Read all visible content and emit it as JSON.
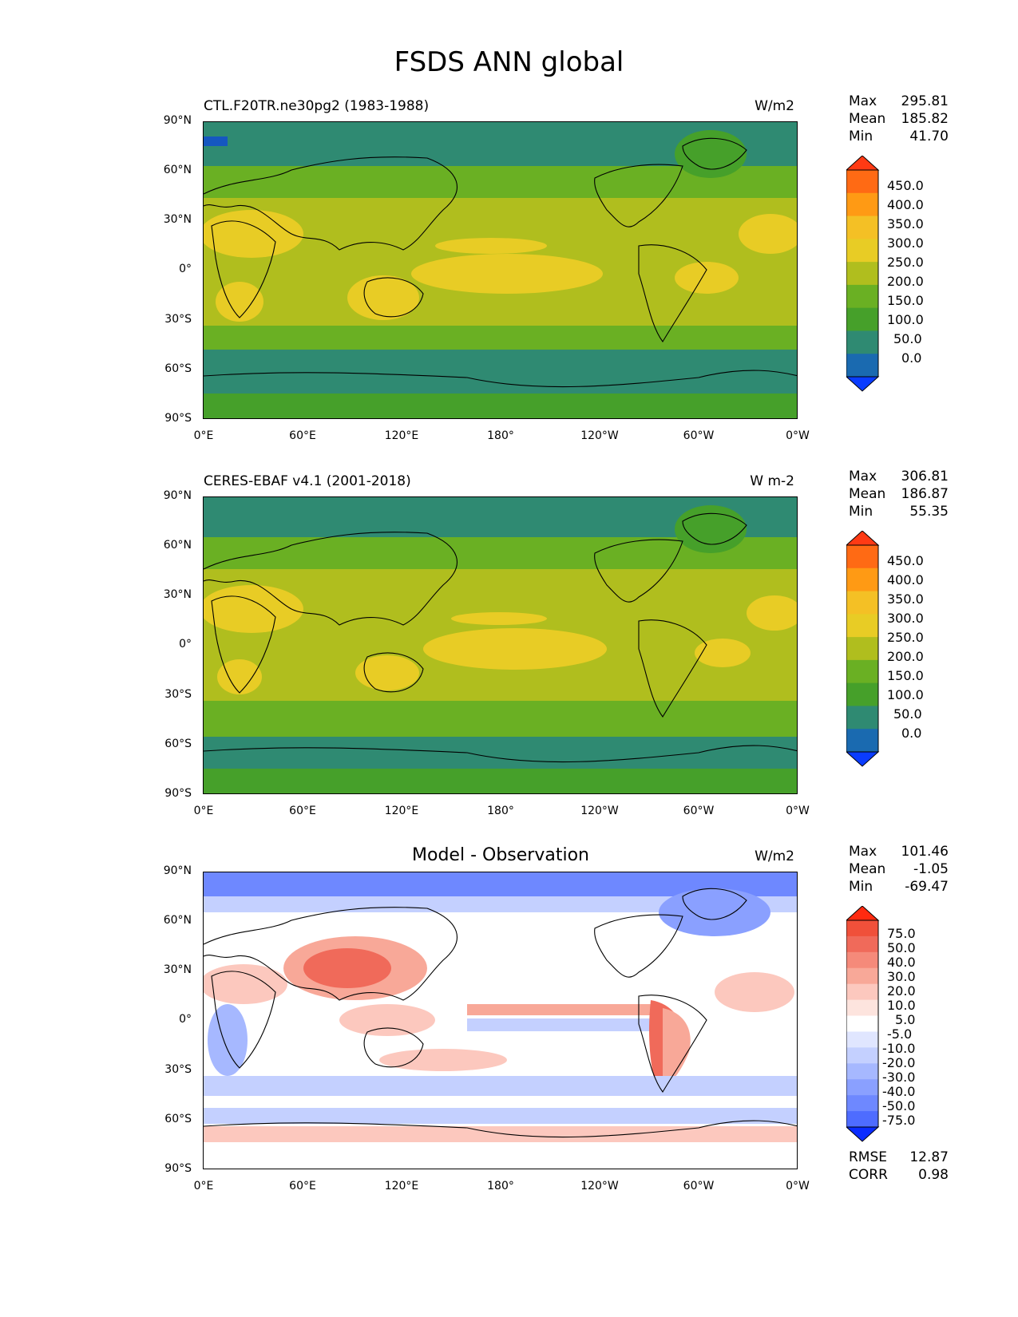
{
  "title": "FSDS ANN global",
  "colors": {
    "bg_green": "#46a02a",
    "dark_teal": "#2f8a72",
    "mid_green": "#6ab023",
    "olive": "#b0be1e",
    "yellow": "#e8cc25",
    "blue_region": "#1557c0",
    "diff_white": "#ffffff",
    "diff_blue_light": "#c9d6ff",
    "diff_blue_mid": "#8ea8ff",
    "diff_blue_dark": "#5a7cf0",
    "diff_red_light": "#ffcfc5",
    "diff_red_mid": "#f59a8a",
    "diff_red_dark": "#e84530"
  },
  "x_ticks": [
    "0°E",
    "60°E",
    "120°E",
    "180°",
    "120°W",
    "60°W",
    "0°W"
  ],
  "y_ticks": [
    "90°N",
    "60°N",
    "30°N",
    "0°",
    "30°S",
    "60°S",
    "90°S"
  ],
  "panels": [
    {
      "title": "CTL.F20TR.ne30pg2 (1983-1988)",
      "units": "W/m2",
      "stats": [
        {
          "label": "Max",
          "value": "295.81"
        },
        {
          "label": "Mean",
          "value": "185.82"
        },
        {
          "label": "Min",
          "value": "41.70"
        }
      ]
    },
    {
      "title": "CERES-EBAF v4.1 (2001-2018)",
      "units": "W m-2",
      "stats": [
        {
          "label": "Max",
          "value": "306.81"
        },
        {
          "label": "Mean",
          "value": "186.87"
        },
        {
          "label": "Min",
          "value": "55.35"
        }
      ]
    },
    {
      "title": "Model - Observation",
      "units": "W/m2",
      "stats": [
        {
          "label": "Max",
          "value": "101.46"
        },
        {
          "label": "Mean",
          "value": "-1.05"
        },
        {
          "label": "Min",
          "value": "-69.47"
        }
      ],
      "metrics": [
        {
          "label": "RMSE",
          "value": "12.87"
        },
        {
          "label": "CORR",
          "value": "0.98"
        }
      ]
    }
  ],
  "colorbar_field": {
    "labels": [
      "450.0",
      "400.0",
      "350.0",
      "300.0",
      "250.0",
      "200.0",
      "150.0",
      "100.0",
      "50.0",
      "0.0"
    ],
    "colors": [
      "#ff3a14",
      "#ff6a14",
      "#ff9a14",
      "#f4c025",
      "#e8cc25",
      "#b0be1e",
      "#6ab023",
      "#46a02a",
      "#2f8a72",
      "#1a6ab0",
      "#0a3cff"
    ]
  },
  "colorbar_diff": {
    "labels": [
      "75.0",
      "50.0",
      "40.0",
      "30.0",
      "20.0",
      "10.0",
      "5.0",
      "-5.0",
      "-10.0",
      "-20.0",
      "-30.0",
      "-40.0",
      "-50.0",
      "-75.0"
    ],
    "colors": [
      "#ff2a10",
      "#f0503a",
      "#f06a5a",
      "#f58a7a",
      "#f8a898",
      "#fcc8be",
      "#fde4de",
      "#ffffff",
      "#e0e6ff",
      "#c4d0ff",
      "#a6b8ff",
      "#8aa0ff",
      "#6e88ff",
      "#4e6cff",
      "#0a2cff"
    ]
  }
}
